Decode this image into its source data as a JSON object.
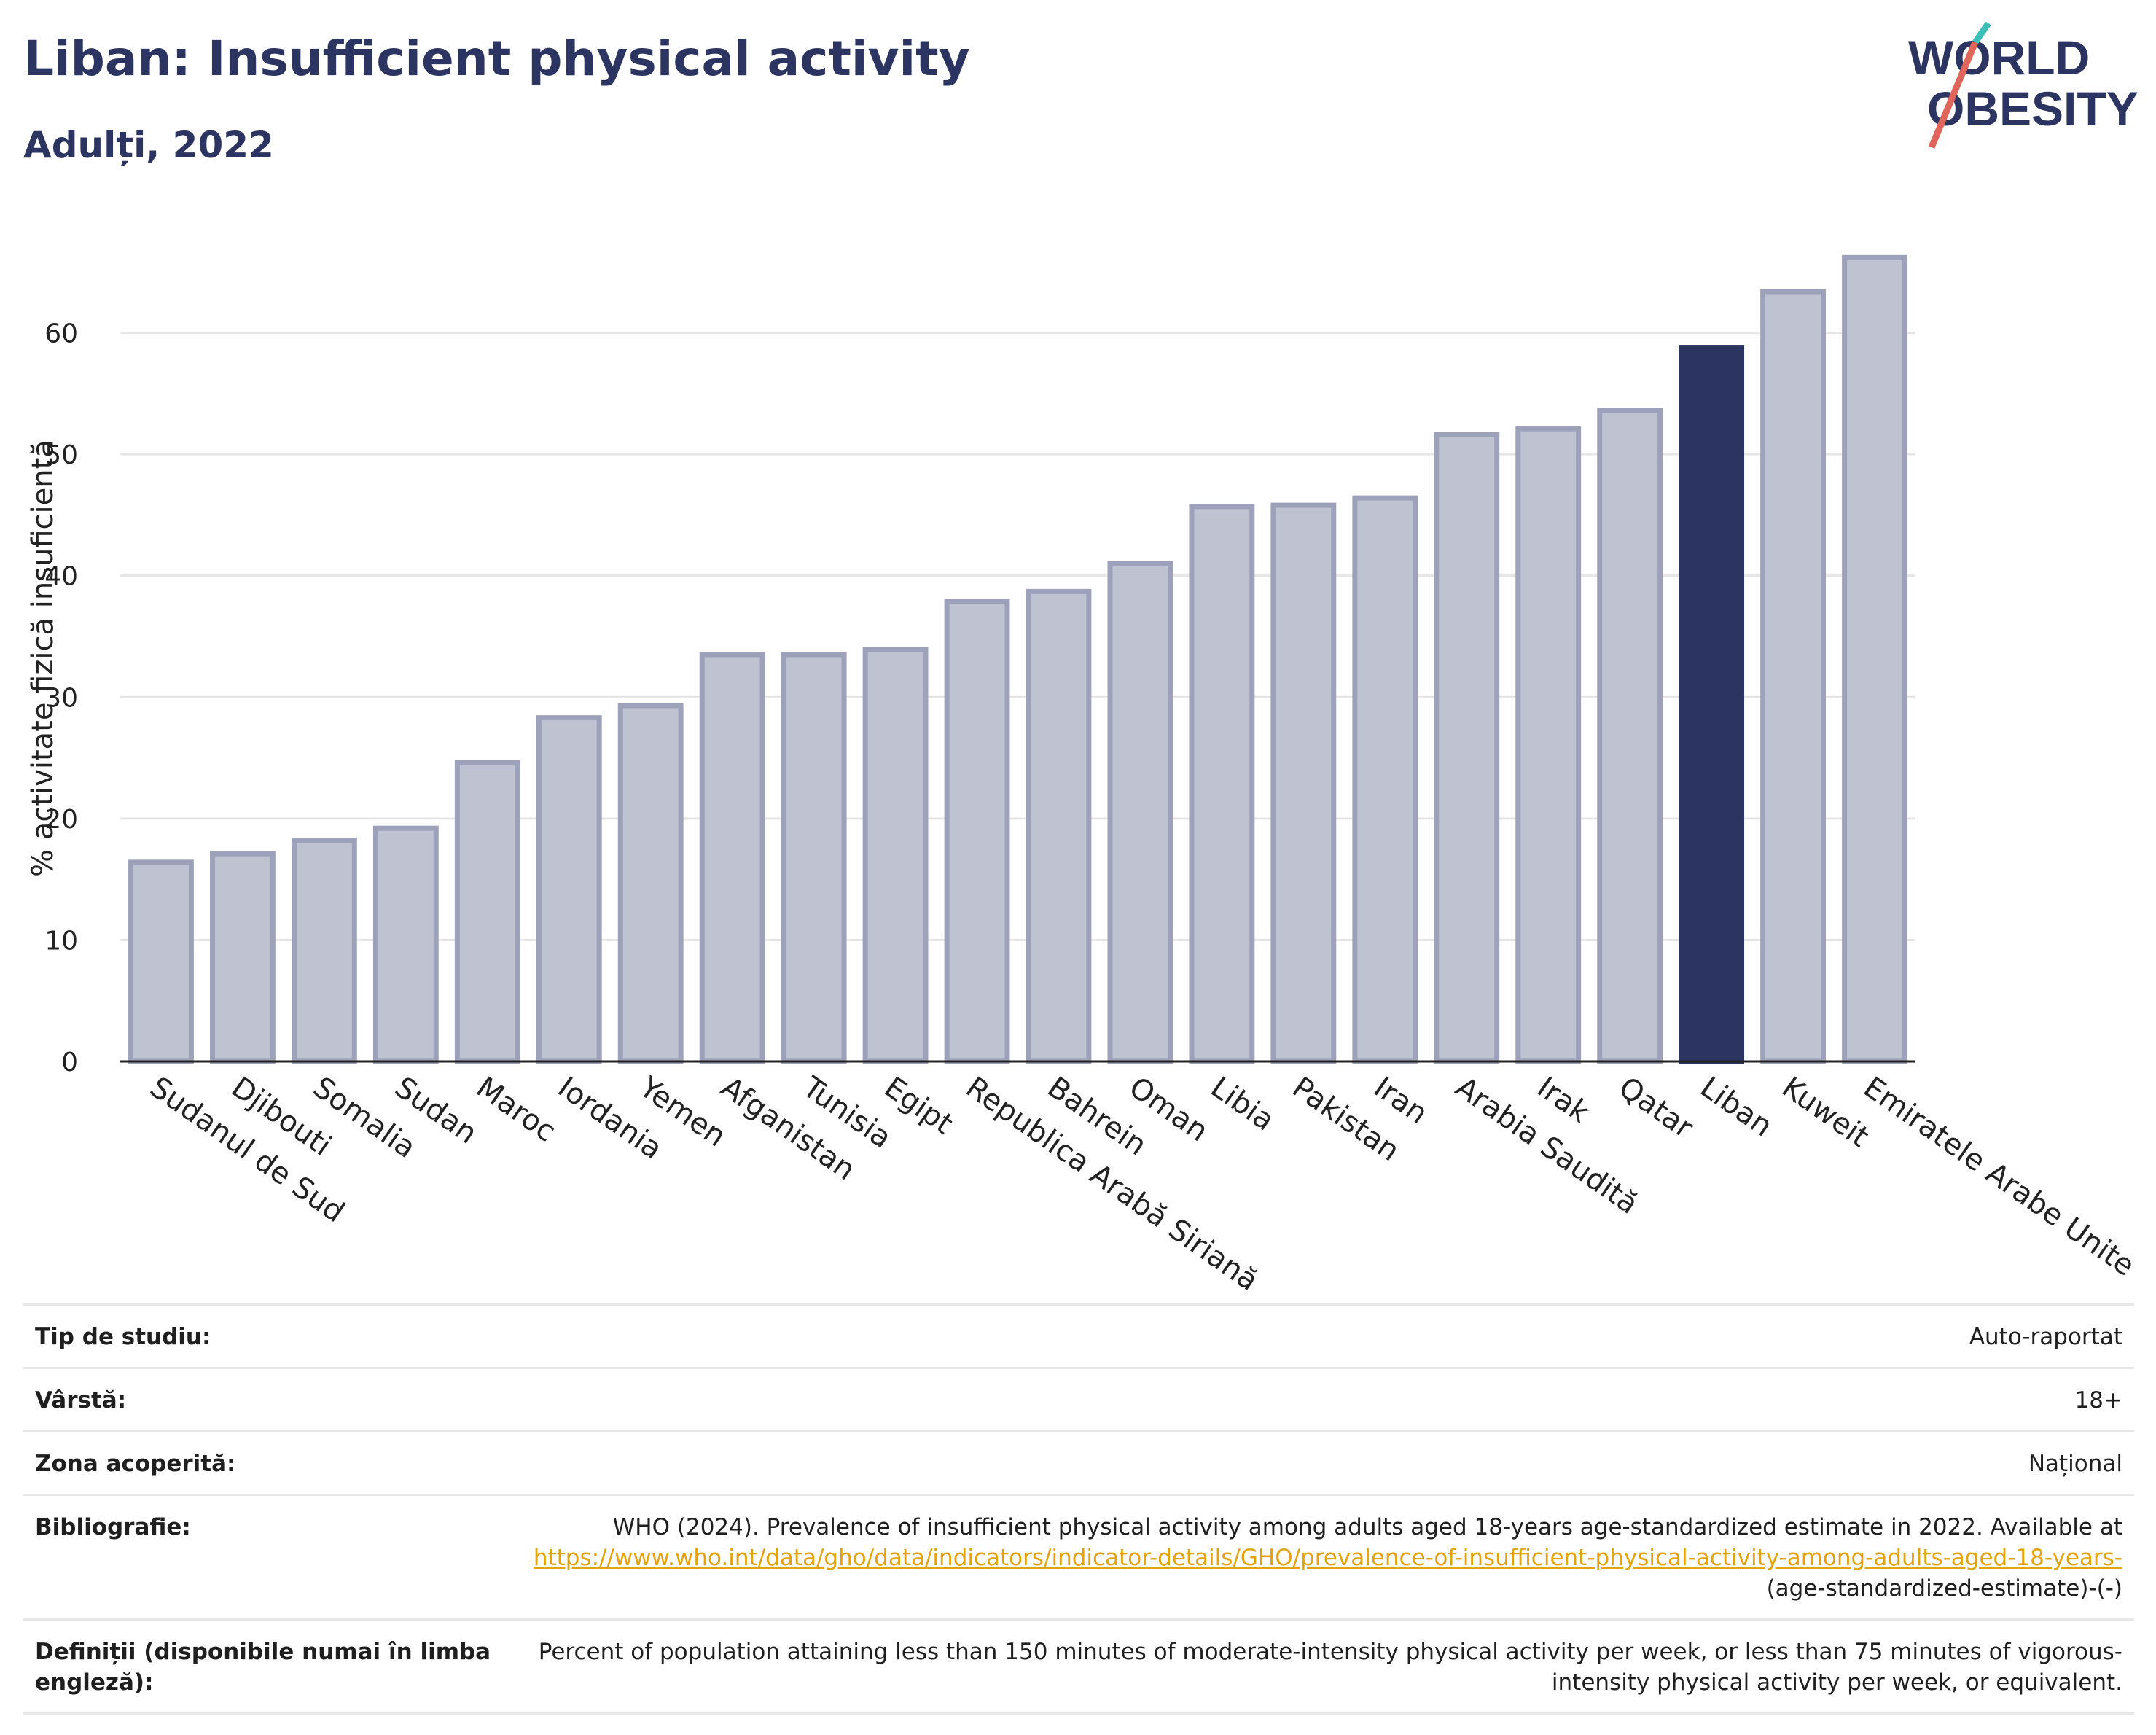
{
  "header": {
    "title": "Liban: Insufficient physical activity",
    "subtitle": "Adulți, 2022"
  },
  "logo": {
    "line1": "WORLD",
    "line2": "OBESITY",
    "icon": "world-obesity-slash-logo"
  },
  "colors": {
    "bar": "#bfc2d1",
    "bar_stroke": "#9da1ba",
    "highlight": "#2c3561",
    "title": "#2c3561",
    "link": "#e4a30b"
  },
  "chart_data": {
    "type": "bar",
    "categories": [
      "Sudanul de Sud",
      "Djibouti",
      "Somalia",
      "Sudan",
      "Maroc",
      "Iordania",
      "Yemen",
      "Afganistan",
      "Tunisia",
      "Egipt",
      "Republica Arabă Siriană",
      "Bahrein",
      "Oman",
      "Libia",
      "Pakistan",
      "Iran",
      "Arabia Saudită",
      "Irak",
      "Qatar",
      "Liban",
      "Kuweit",
      "Emiratele Arabe Unite"
    ],
    "values": [
      16.4,
      17.1,
      18.2,
      19.2,
      24.6,
      28.3,
      29.3,
      33.5,
      33.5,
      33.9,
      37.9,
      38.7,
      41.0,
      45.7,
      45.8,
      46.4,
      51.6,
      52.1,
      53.6,
      58.8,
      63.4,
      66.2
    ],
    "highlight": "Liban",
    "title": "Liban: Insufficient physical activity",
    "xlabel": "",
    "ylabel": "% activitate fizică insuficientă",
    "ylim": [
      0,
      70
    ],
    "yticks": [
      0,
      10,
      20,
      30,
      40,
      50,
      60
    ],
    "grid": true
  },
  "info": {
    "rows": [
      {
        "label": "Tip de studiu:",
        "value": "Auto-raportat"
      },
      {
        "label": "Vârstă:",
        "value": "18+"
      },
      {
        "label": "Zona acoperită:",
        "value": "Național"
      }
    ],
    "bibliography": {
      "label": "Bibliografie:",
      "text": "WHO (2024). Prevalence of insufficient physical activity among adults aged 18-years age-standardized estimate in 2022. Available at",
      "link": "https://www.who.int/data/gho/data/indicators/indicator-details/GHO/prevalence-of-insufficient-physical-activity-among-adults-aged-18-years-",
      "suffix": "(age-standardized-estimate)-(-)"
    },
    "definitions": {
      "label": "Definiții (disponibile numai în limba engleză):",
      "value": "Percent of population attaining less than 150 minutes of moderate-intensity physical activity per week, or less than 75 minutes of vigorous-intensity physical activity per week, or equivalent."
    }
  }
}
